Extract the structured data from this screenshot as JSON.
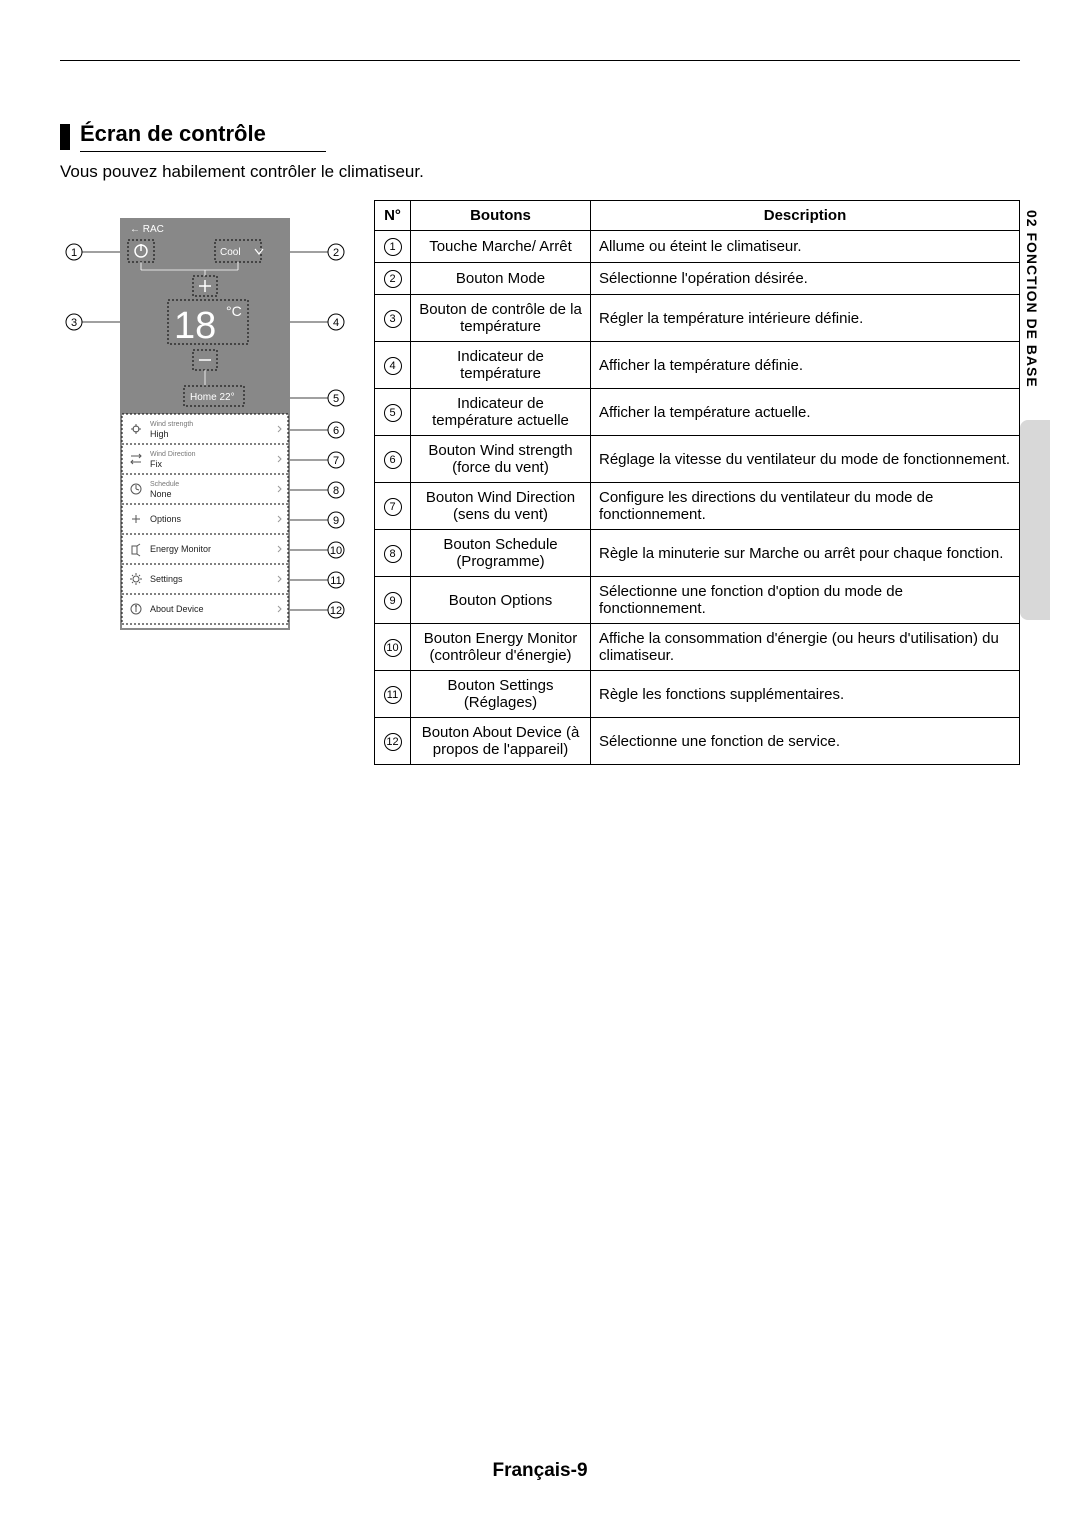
{
  "side_tab": "02  FONCTION DE BASE",
  "heading": "Écran de contrôle",
  "intro": "Vous pouvez habilement contrôler le climatiseur.",
  "footer": "Français-9",
  "diagram": {
    "header_back": "←  RAC",
    "mode_label": "Cool",
    "temp_value": "18",
    "temp_unit": "°C",
    "home_label": "Home 22°",
    "list": [
      {
        "title": "Wind strength",
        "value": "High"
      },
      {
        "title": "Wind Direction",
        "value": "Fix"
      },
      {
        "title": "Schedule",
        "value": "None"
      },
      {
        "title": "Options",
        "value": ""
      },
      {
        "title": "Energy Monitor",
        "value": ""
      },
      {
        "title": "Settings",
        "value": ""
      },
      {
        "title": "About Device",
        "value": ""
      }
    ],
    "colors": {
      "phone_bg": "#888888",
      "phone_inner": "#bfbfbf",
      "list_bg": "#ffffff",
      "dash": "#000000"
    }
  },
  "table": {
    "headers": {
      "n": "N°",
      "btn": "Boutons",
      "desc": "Description"
    },
    "rows": [
      {
        "n": "1",
        "btn": "Touche Marche/ Arrêt",
        "desc": "Allume ou éteint le climatiseur."
      },
      {
        "n": "2",
        "btn": "Bouton Mode",
        "desc": "Sélectionne l'opération désirée."
      },
      {
        "n": "3",
        "btn": "Bouton de contrôle de la température",
        "desc": "Régler la température intérieure définie."
      },
      {
        "n": "4",
        "btn": "Indicateur de température",
        "desc": "Afficher la température définie."
      },
      {
        "n": "5",
        "btn": "Indicateur de température actuelle",
        "desc": "Afficher la température actuelle."
      },
      {
        "n": "6",
        "btn": "Bouton Wind strength (force du vent)",
        "desc": "Réglage la vitesse du ventilateur du mode de fonctionnement."
      },
      {
        "n": "7",
        "btn": "Bouton Wind Direction (sens du vent)",
        "desc": "Configure les directions du ventilateur du mode de fonctionnement."
      },
      {
        "n": "8",
        "btn": "Bouton Schedule (Programme)",
        "desc": "Règle la minuterie sur Marche ou arrêt pour chaque fonction."
      },
      {
        "n": "9",
        "btn": "Bouton Options",
        "desc": "Sélectionne une fonction d'option du mode de fonctionnement."
      },
      {
        "n": "10",
        "btn": "Bouton Energy Monitor (contrôleur d'énergie)",
        "desc": "Affiche la consommation d'énergie (ou heurs d'utilisation) du climatiseur."
      },
      {
        "n": "11",
        "btn": "Bouton Settings (Réglages)",
        "desc": "Règle les fonctions supplémentaires."
      },
      {
        "n": "12",
        "btn": "Bouton About Device (à propos de l'appareil)",
        "desc": "Sélectionne une fonction de service."
      }
    ]
  }
}
